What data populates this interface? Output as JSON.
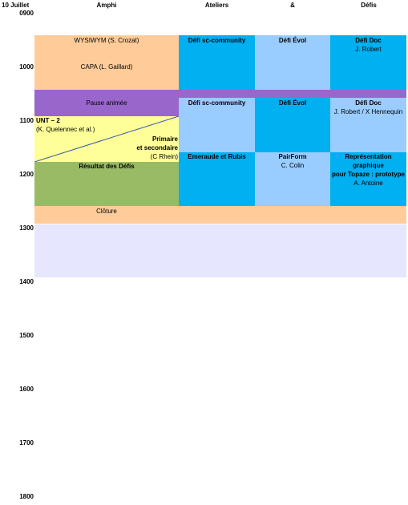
{
  "header": {
    "date": "10 Juillet",
    "col1": "Amphi",
    "col2": "Ateliers",
    "col3": "&",
    "col4": "Défis"
  },
  "times": [
    "0900",
    "1000",
    "1100",
    "1200",
    "1300",
    "1400",
    "1500",
    "1600",
    "1700",
    "1800"
  ],
  "amphi": {
    "wysiwym": "WYSIWYM (S. Crozat)",
    "capa": "CAPA (L. Gaillard)",
    "pause": "Pause animée",
    "unt_title": "UNT – 2",
    "unt_authors": "(K. Quelennec et al.)",
    "primaire_1": "Primaire",
    "primaire_2": "et secondaire",
    "primaire_author": "(C Rhein)",
    "resultat": "Résultat des Défis",
    "cloture": "Clôture"
  },
  "ateliers": {
    "sc_community_1": "Défi sc-community",
    "sc_community_2": "Défi sc-community",
    "emeraude": "Emeraude et Rubis"
  },
  "et": {
    "evol_1": "Défi Évol",
    "evol_2": "Défi Évol",
    "pairform": "PairForm",
    "pairform_author": "C. Colin"
  },
  "defis": {
    "doc_1": "Défi Doc",
    "doc_1_author": "J. Robert",
    "doc_2": "Défi Doc",
    "doc_2_author": "J. Robert / X Hennequin",
    "repr_1": "Représentation",
    "repr_2": "graphique",
    "repr_3": "pour Topaze : prototype",
    "repr_author": "A. Antoine"
  },
  "colors": {
    "orange": "#ffcc99",
    "cyan": "#00b0f0",
    "light_blue": "#99ccff",
    "purple": "#9966cc",
    "yellow": "#ffff99",
    "green": "#99bb66",
    "lavender": "#e6e6ff"
  }
}
